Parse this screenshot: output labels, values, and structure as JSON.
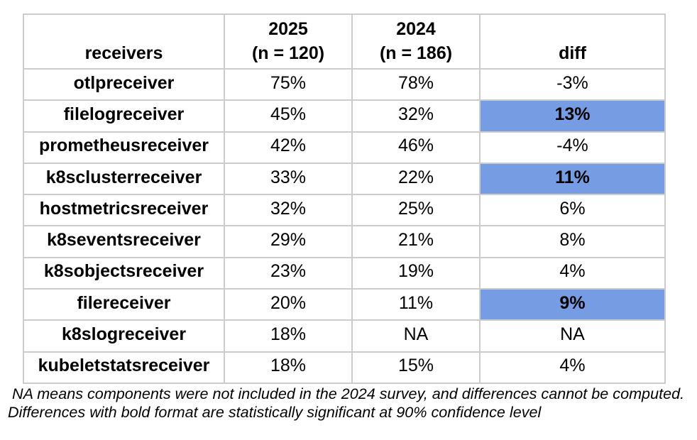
{
  "chart_data": {
    "type": "table",
    "columns": [
      "receivers",
      "2025 (n = 120)",
      "2024 (n = 186)",
      "diff"
    ],
    "rows": [
      [
        "otlpreceiver",
        "75%",
        "78%",
        "-3%"
      ],
      [
        "filelogreceiver",
        "45%",
        "32%",
        "13%"
      ],
      [
        "prometheusreceiver",
        "42%",
        "46%",
        "-4%"
      ],
      [
        "k8sclusterreceiver",
        "33%",
        "22%",
        "11%"
      ],
      [
        "hostmetricsreceiver",
        "32%",
        "25%",
        "6%"
      ],
      [
        "k8seventsreceiver",
        "29%",
        "21%",
        "8%"
      ],
      [
        "k8sobjectsreceiver",
        "23%",
        "19%",
        "4%"
      ],
      [
        "filereceiver",
        "20%",
        "11%",
        "9%"
      ],
      [
        "k8slogreceiver",
        "18%",
        "NA",
        "NA"
      ],
      [
        "kubeletstatsreceiver",
        "18%",
        "15%",
        "4%"
      ]
    ],
    "highlighted_row_indices": [
      1,
      3,
      7
    ],
    "highlight_meaning": "diff bold + blue fill = statistically significant at 90% confidence level",
    "footnotes": [
      " NA means components were not included in the 2024 survey, and differences cannot be computed.",
      "Differences with bold format are statistically significant at 90% confidence level"
    ]
  },
  "table": {
    "header": {
      "col1": "receivers",
      "col2_line1": "2025",
      "col2_line2": "(n = 120)",
      "col3_line1": "2024",
      "col3_line2": "(n = 186)",
      "col4": "diff"
    },
    "rows": [
      {
        "receiver": "otlpreceiver",
        "y2025": "75%",
        "y2024": "78%",
        "diff": "-3%",
        "highlight": false
      },
      {
        "receiver": "filelogreceiver",
        "y2025": "45%",
        "y2024": "32%",
        "diff": "13%",
        "highlight": true
      },
      {
        "receiver": "prometheusreceiver",
        "y2025": "42%",
        "y2024": "46%",
        "diff": "-4%",
        "highlight": false
      },
      {
        "receiver": "k8sclusterreceiver",
        "y2025": "33%",
        "y2024": "22%",
        "diff": "11%",
        "highlight": true
      },
      {
        "receiver": "hostmetricsreceiver",
        "y2025": "32%",
        "y2024": "25%",
        "diff": "6%",
        "highlight": false
      },
      {
        "receiver": "k8seventsreceiver",
        "y2025": "29%",
        "y2024": "21%",
        "diff": "8%",
        "highlight": false
      },
      {
        "receiver": "k8sobjectsreceiver",
        "y2025": "23%",
        "y2024": "19%",
        "diff": "4%",
        "highlight": false
      },
      {
        "receiver": "filereceiver",
        "y2025": "20%",
        "y2024": "11%",
        "diff": "9%",
        "highlight": true
      },
      {
        "receiver": "k8slogreceiver",
        "y2025": "18%",
        "y2024": "NA",
        "diff": "NA",
        "highlight": false
      },
      {
        "receiver": "kubeletstatsreceiver",
        "y2025": "18%",
        "y2024": "15%",
        "diff": "4%",
        "highlight": false
      }
    ]
  },
  "footnotes": {
    "line1": " NA means components were not included in the 2024 survey, and differences cannot be computed.",
    "line2": "Differences with bold format are statistically significant at 90% confidence level"
  },
  "colors": {
    "highlight": "#769de3",
    "border": "#cccccc",
    "text": "#000000",
    "background": "#ffffff"
  }
}
